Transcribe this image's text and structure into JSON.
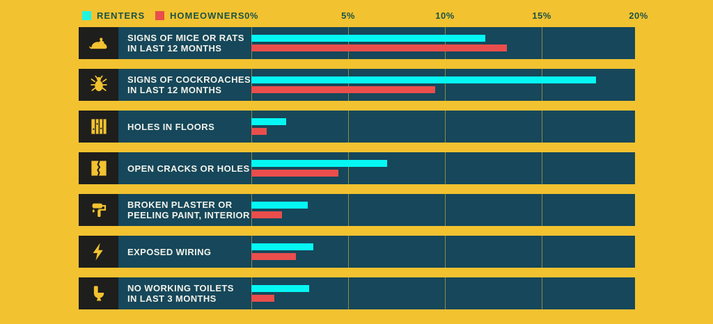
{
  "legend": {
    "renters": "RENTERS",
    "homeowners": "HOMEOWNERS"
  },
  "colors": {
    "background": "#F2C230",
    "panel": "#16475A",
    "icon_box": "#1E1E1C",
    "renters_bar": "#06F7F3",
    "homeowners_bar": "#EA4E4C",
    "axis_text": "#1B5346",
    "row_label_text": "#F2F2EA"
  },
  "axis": {
    "ticks": [
      "0%",
      "5%",
      "10%",
      "15%",
      "20%"
    ]
  },
  "rows": [
    {
      "icon": "rat-icon",
      "lines": [
        "SIGNS OF MICE OR RATS",
        "IN LAST 12 MONTHS"
      ]
    },
    {
      "icon": "cockroach-icon",
      "lines": [
        "SIGNS OF COCKROACHES",
        "IN LAST 12 MONTHS"
      ]
    },
    {
      "icon": "floorboards-icon",
      "lines": [
        "HOLES IN FLOORS"
      ]
    },
    {
      "icon": "cracked-wall-icon",
      "lines": [
        "OPEN CRACKS OR HOLES"
      ]
    },
    {
      "icon": "paint-roller-icon",
      "lines": [
        "BROKEN PLASTER OR",
        "PEELING PAINT, INTERIOR"
      ]
    },
    {
      "icon": "lightning-bolt-icon",
      "lines": [
        "EXPOSED WIRING"
      ]
    },
    {
      "icon": "toilet-icon",
      "lines": [
        "NO WORKING TOILETS",
        "IN LAST 3 MONTHS"
      ]
    }
  ],
  "chart_data": {
    "type": "bar",
    "orientation": "horizontal",
    "title": "",
    "categories": [
      "SIGNS OF MICE OR RATS IN LAST 12 MONTHS",
      "SIGNS OF COCKROACHES IN LAST 12 MONTHS",
      "HOLES IN FLOORS",
      "OPEN CRACKS OR HOLES",
      "BROKEN PLASTER OR PEELING PAINT, INTERIOR",
      "EXPOSED WIRING",
      "NO WORKING TOILETS IN LAST 3 MONTHS"
    ],
    "series": [
      {
        "name": "RENTERS",
        "color": "#06F7F3",
        "values": [
          12.1,
          17.8,
          1.8,
          7.0,
          2.9,
          3.2,
          3.0
        ]
      },
      {
        "name": "HOMEOWNERS",
        "color": "#EA4E4C",
        "values": [
          13.2,
          9.5,
          0.8,
          4.5,
          1.6,
          2.3,
          1.2
        ]
      }
    ],
    "xlabel": "",
    "ylabel": "",
    "xlim": [
      0,
      20
    ],
    "x_tick_labels": [
      "0%",
      "5%",
      "10%",
      "15%",
      "20%"
    ],
    "grid": true,
    "legend_position": "top-left"
  }
}
